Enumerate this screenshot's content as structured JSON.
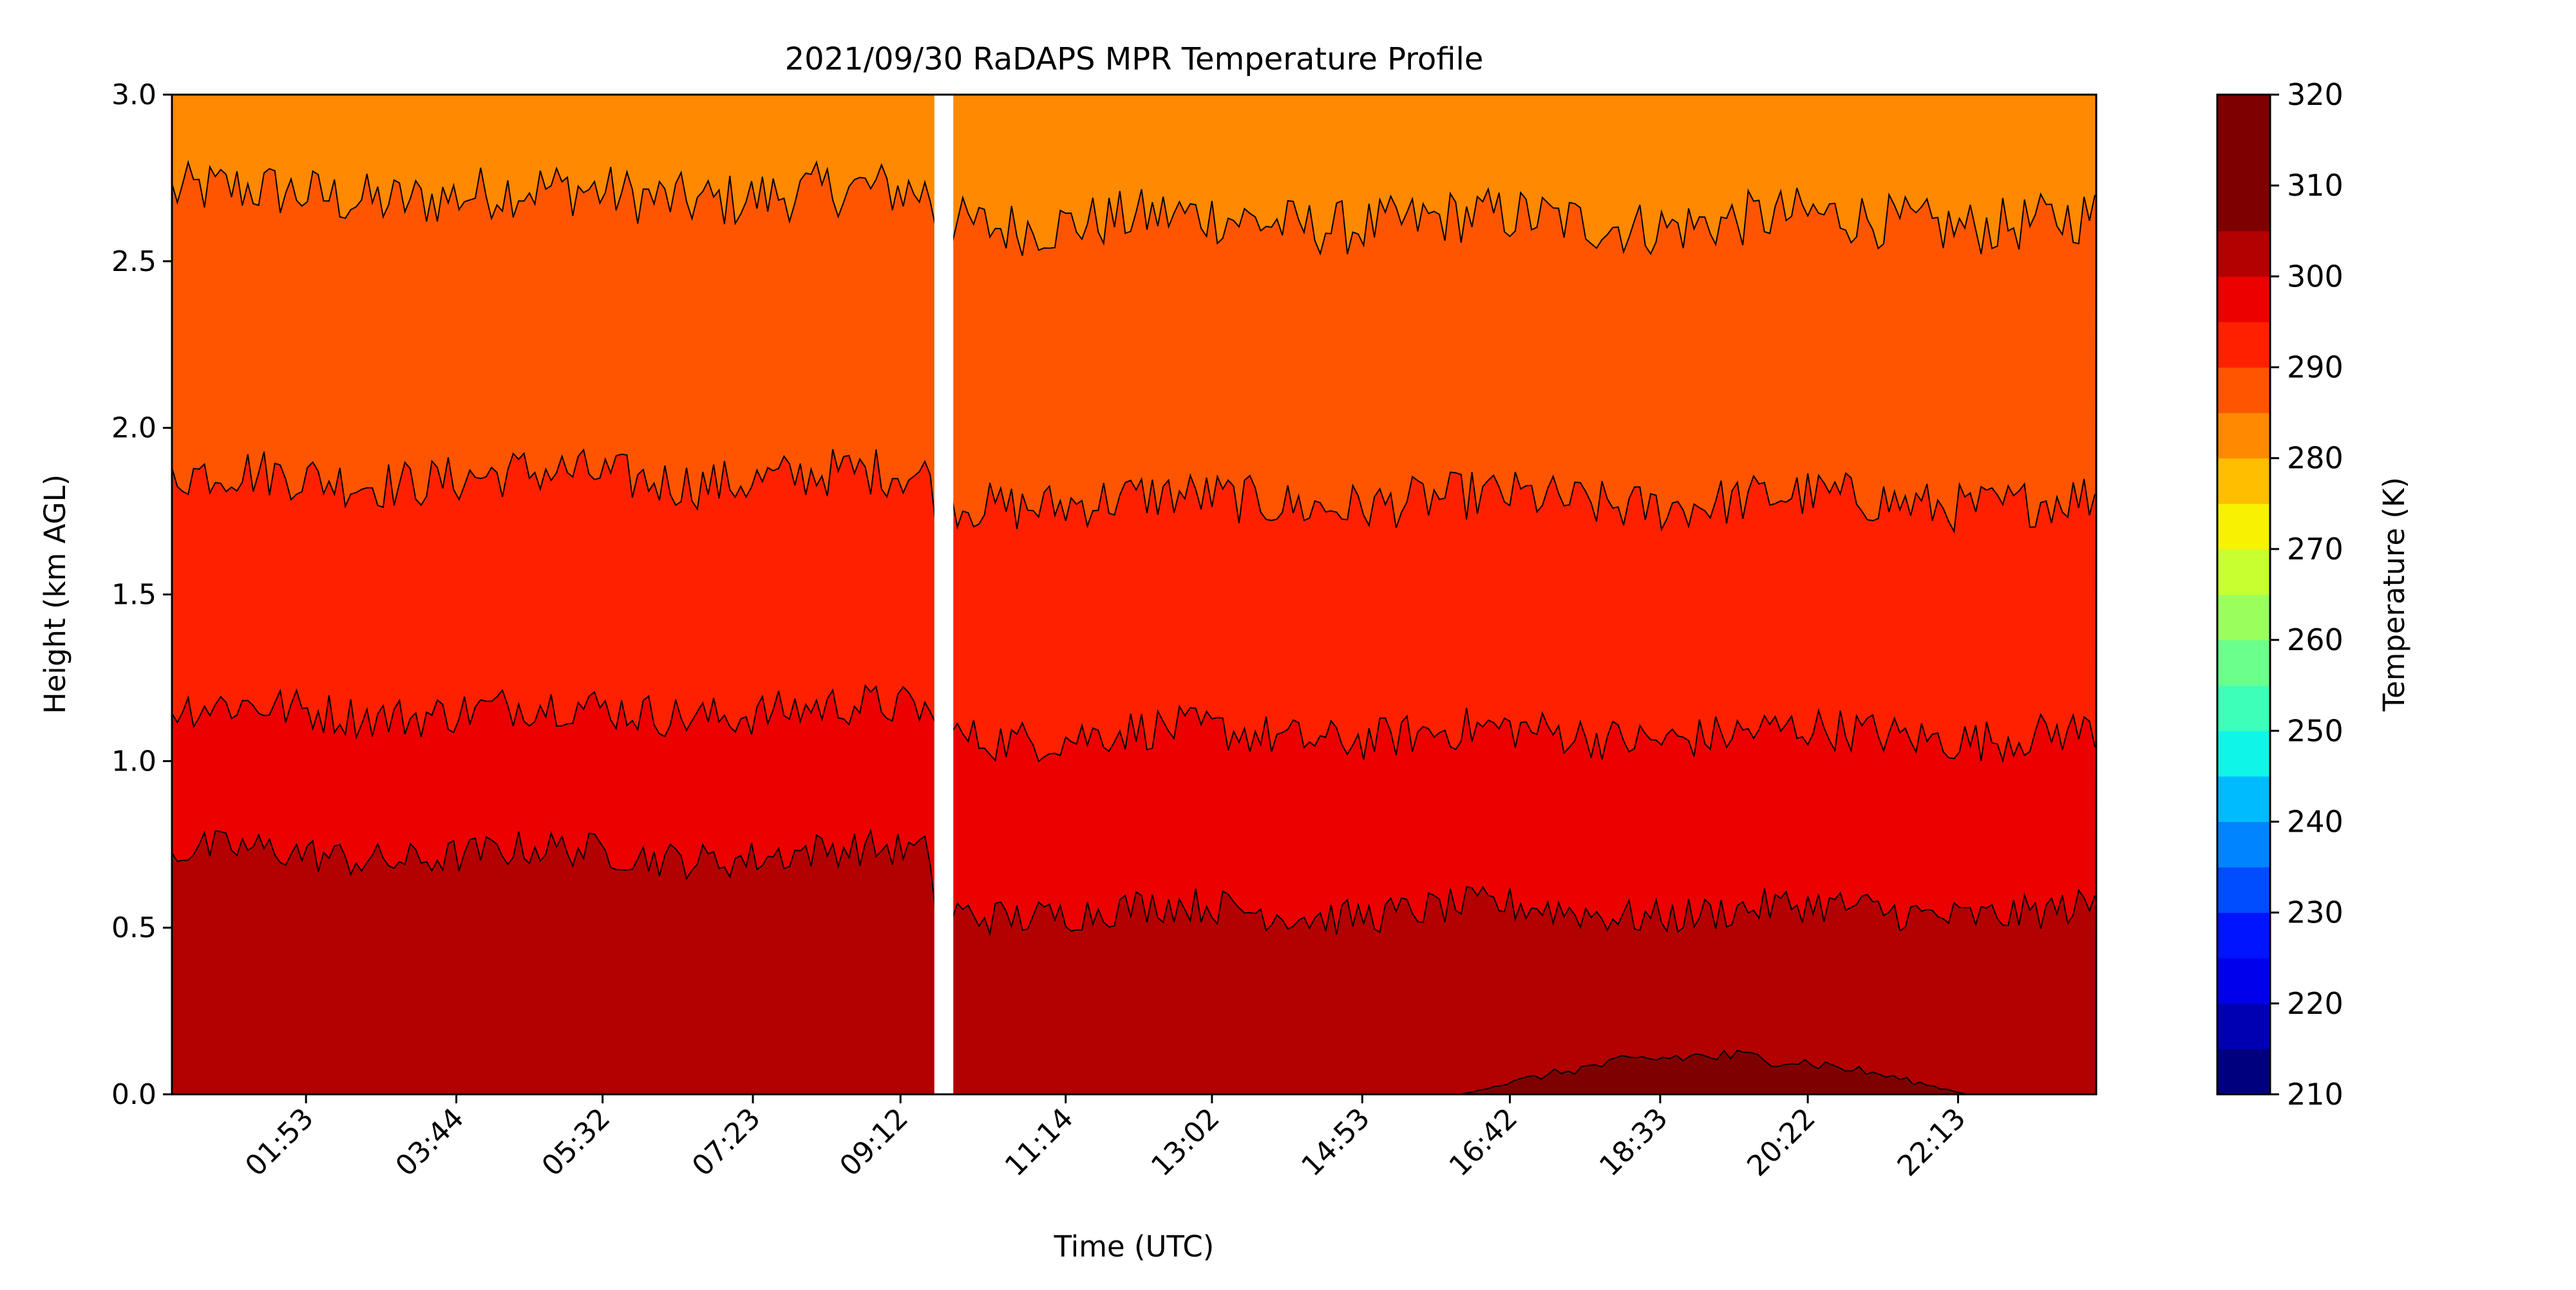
{
  "chart_data": {
    "type": "heatmap",
    "subtype": "filled-contour",
    "title": "2021/09/30 RaDAPS MPR Temperature Profile",
    "xlabel": "Time (UTC)",
    "ylabel": "Height (km AGL)",
    "xlim": [
      "00:14",
      "23:55"
    ],
    "ylim": [
      0.0,
      3.0
    ],
    "x_ticks": [
      "01:53",
      "03:44",
      "05:32",
      "07:23",
      "09:12",
      "11:14",
      "13:02",
      "14:53",
      "16:42",
      "18:33",
      "20:22",
      "22:13"
    ],
    "y_ticks": [
      "0.0",
      "0.5",
      "1.0",
      "1.5",
      "2.0",
      "2.5",
      "3.0"
    ],
    "data_gap": {
      "start": "09:37",
      "end": "09:51"
    },
    "colorbar": {
      "label": "Temperature (K)",
      "range": [
        210,
        320
      ],
      "ticks": [
        "210",
        "220",
        "230",
        "240",
        "250",
        "260",
        "270",
        "280",
        "290",
        "300",
        "310",
        "320"
      ],
      "levels": [
        210,
        215,
        220,
        225,
        230,
        235,
        240,
        245,
        250,
        255,
        260,
        265,
        270,
        275,
        280,
        285,
        290,
        295,
        300,
        305,
        310,
        315,
        320
      ],
      "colors": [
        "#00007f",
        "#0000b3",
        "#0000ec",
        "#0014ff",
        "#004cff",
        "#0084ff",
        "#00bcff",
        "#0ff6e8",
        "#3dffba",
        "#6bff8b",
        "#9aff5d",
        "#c8ff2f",
        "#f6f200",
        "#ffbe00",
        "#ff8900",
        "#ff5500",
        "#ff2000",
        "#ec0000",
        "#b30000",
        "#7f0000",
        "#7f0000",
        "#7f0000"
      ]
    },
    "isotherm_heights_km": [
      {
        "temperature_K": 300,
        "before_gap": 0.72,
        "after_gap": 0.55
      },
      {
        "temperature_K": 295,
        "before_gap": 1.15,
        "after_gap": 1.08
      },
      {
        "temperature_K": 290,
        "before_gap": 1.85,
        "after_gap": 1.78
      },
      {
        "temperature_K": 285,
        "before_gap": 2.7,
        "after_gap": 2.62
      }
    ],
    "surface_layer": {
      "temperature_K": 305,
      "period": [
        "16:05",
        "22:20"
      ],
      "max_height_km": 0.12
    },
    "grid": false
  }
}
